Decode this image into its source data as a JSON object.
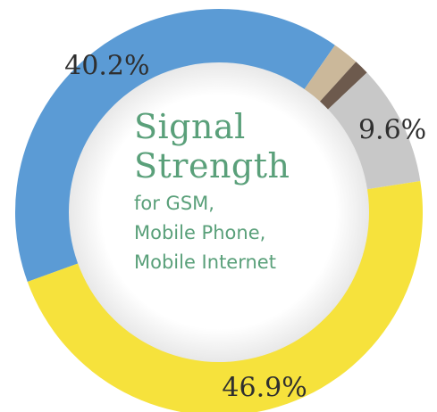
{
  "chart_data": {
    "type": "pie",
    "title_lines": [
      "Signal",
      "Strength"
    ],
    "subtitle_lines": [
      "for GSM,",
      "Mobile Phone,",
      "Mobile Internet"
    ],
    "slices": [
      {
        "value": 40.2,
        "label": "40.2%",
        "color": "#5b9bd5"
      },
      {
        "value": 2.1,
        "label": "",
        "color": "#cbb89a"
      },
      {
        "value": 1.2,
        "label": "",
        "color": "#6d5a4d"
      },
      {
        "value": 9.6,
        "label": "9.6%",
        "color": "#c8c8c8"
      },
      {
        "value": 46.9,
        "label": "46.9%",
        "color": "#f6e23c"
      }
    ]
  }
}
